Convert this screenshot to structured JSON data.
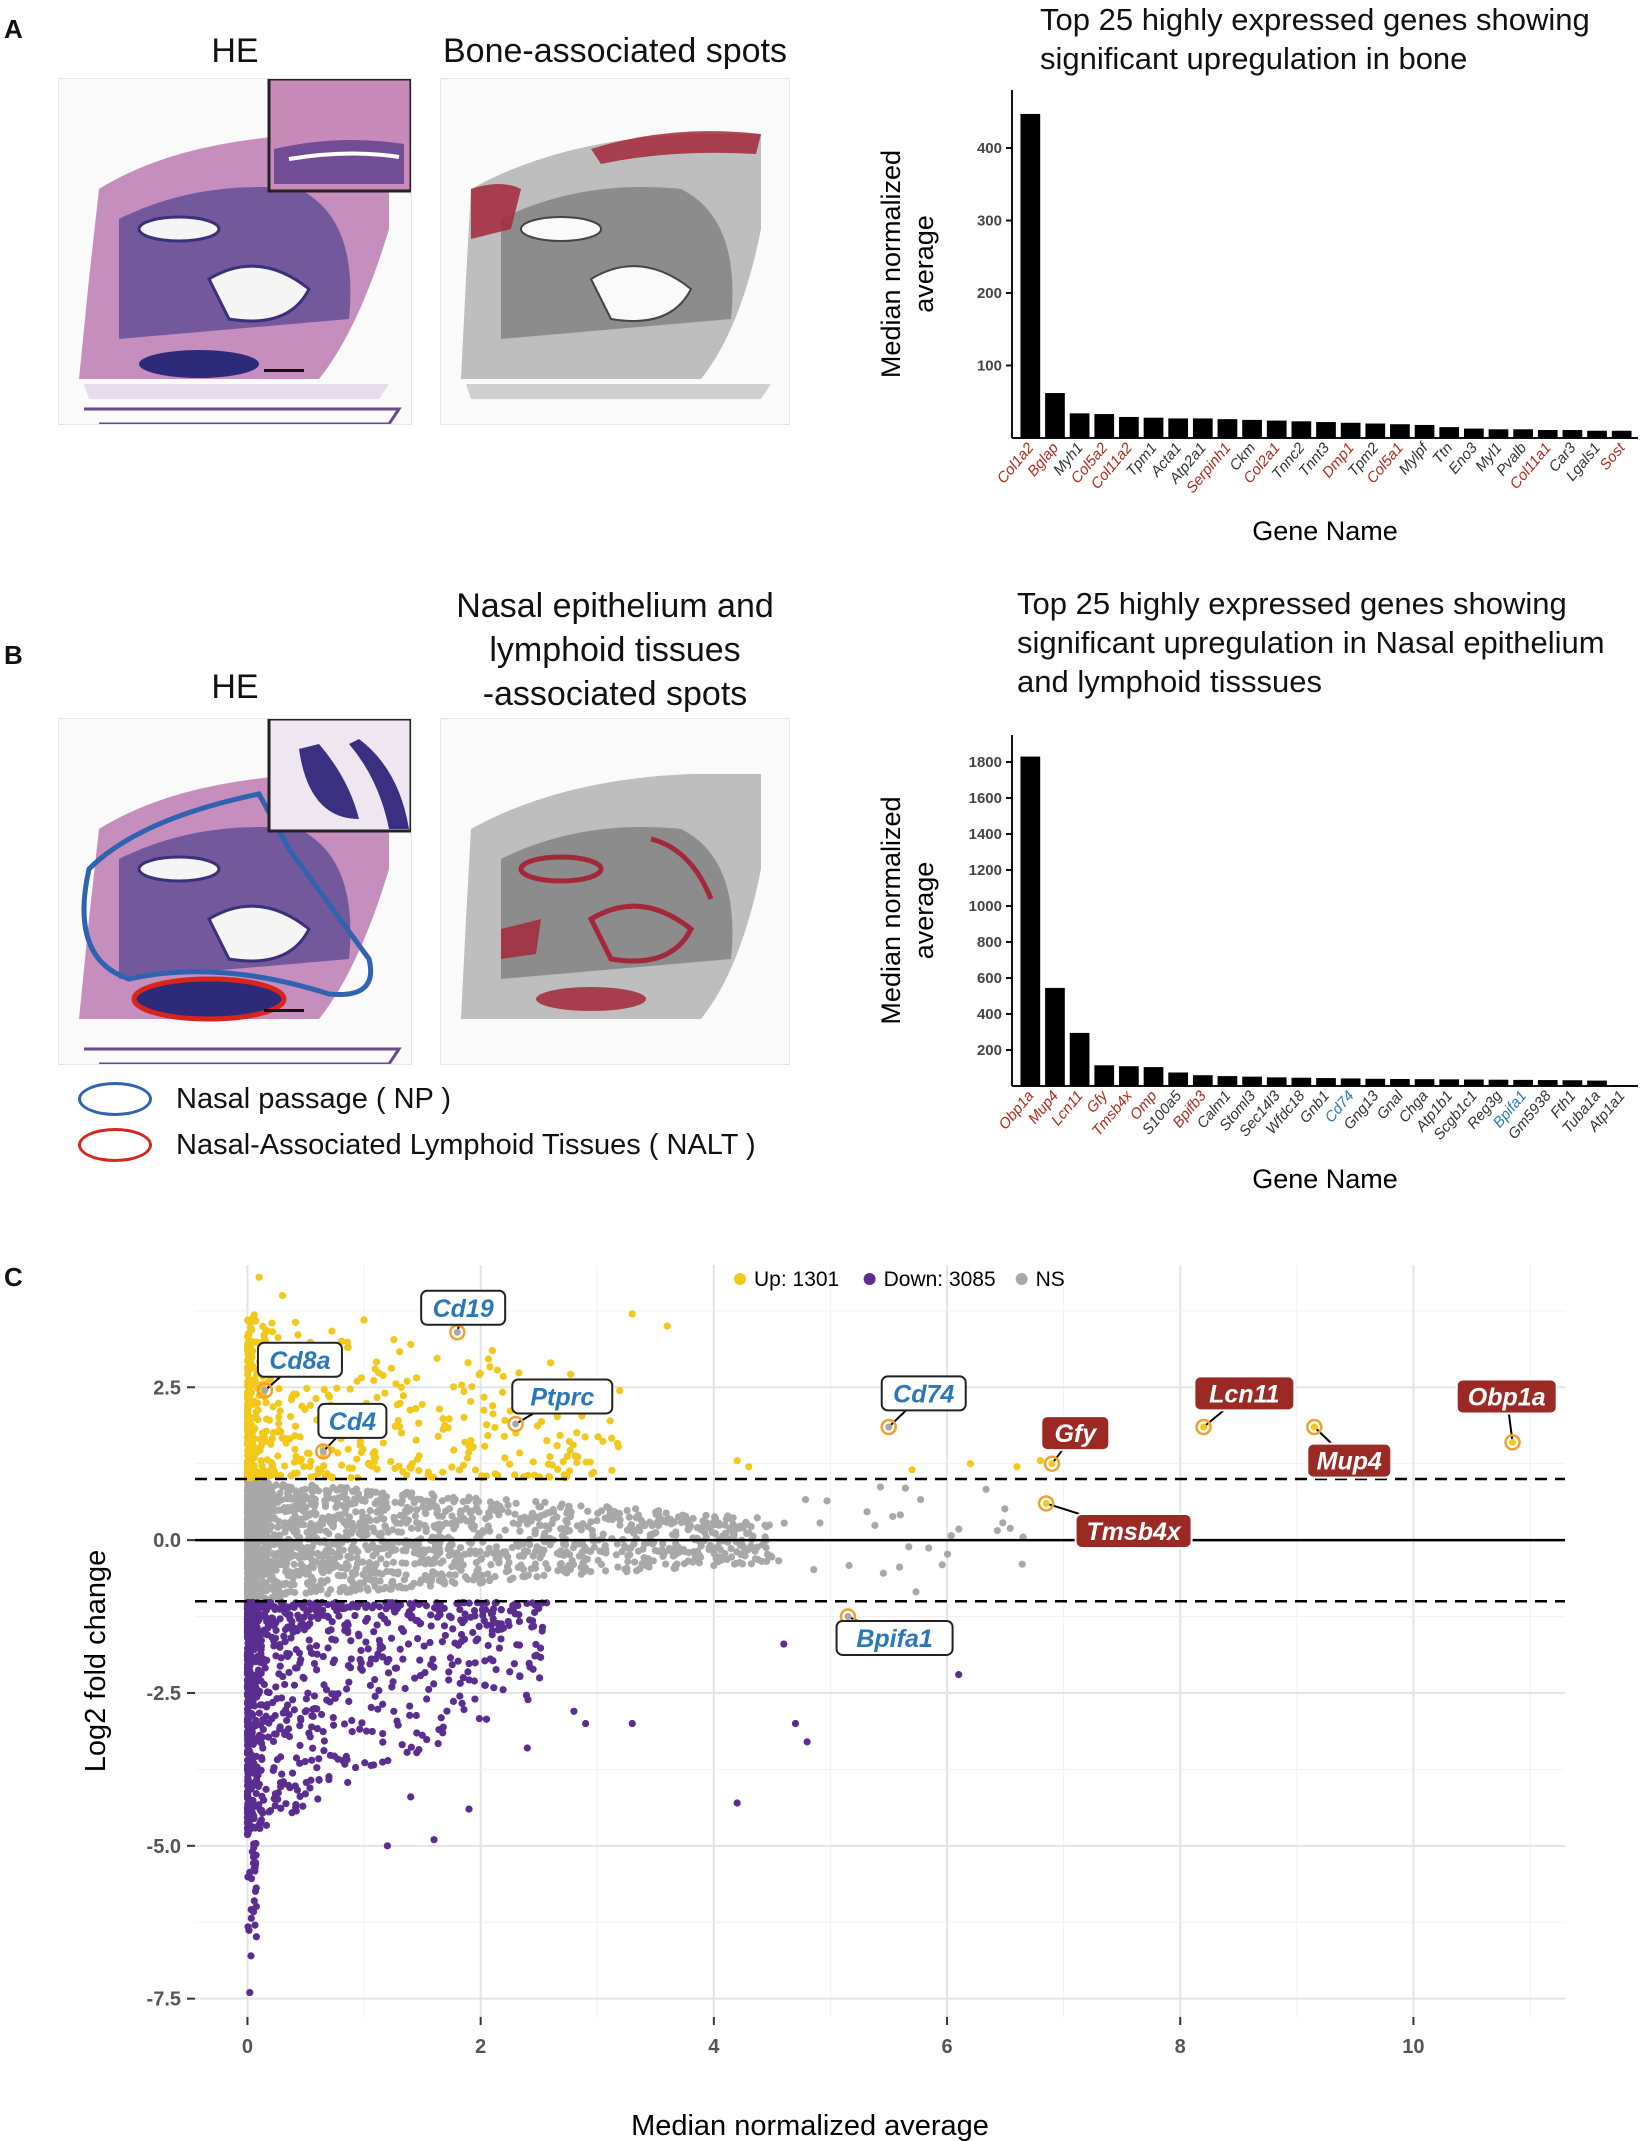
{
  "colors": {
    "red_gene": "#b22a1c",
    "blue_gene": "#2a78b8",
    "black_gene": "#333333",
    "up": "#f2c81a",
    "down": "#5b2d91",
    "ns": "#a8a8a8",
    "np_ellipse": "#2f63b1",
    "nalt_ellipse": "#d9241b",
    "label_red_bg": "#9c2a24",
    "label_blue": "#2a78b8"
  },
  "panelA": {
    "letter": "A",
    "he_title": "HE",
    "spots_title": "Bone-associated spots"
  },
  "panelB": {
    "letter": "B",
    "he_title": "HE",
    "spots_title_lines": [
      "Nasal epithelium and",
      "lymphoid tissues",
      "-associated spots"
    ],
    "legend": [
      {
        "label": "Nasal passage ( NP )",
        "icon": "blue-ellipse-icon"
      },
      {
        "label": "Nasal-Associated Lymphoid Tissues ( NALT )",
        "icon": "red-ellipse-icon"
      }
    ]
  },
  "panelC": {
    "letter": "C"
  },
  "chart_data": [
    {
      "type": "bar",
      "title_lines": [
        "Top 25 highly expressed genes showing",
        "significant upregulation in bone"
      ],
      "xlabel": "Gene Name",
      "ylabel_lines": [
        "Median normalized",
        "average"
      ],
      "ylim": [
        0,
        480
      ],
      "yticks": [
        100,
        200,
        300,
        400
      ],
      "categories": [
        "Col1a2",
        "Bglap",
        "Myh1",
        "Col5a2",
        "Col11a2",
        "Tpm1",
        "Acta1",
        "Atp2a1",
        "Serpinh1",
        "Ckm",
        "Col2a1",
        "Tnnc2",
        "Tnnt3",
        "Dmp1",
        "Tpm2",
        "Col5a1",
        "Mylpf",
        "Ttn",
        "Eno3",
        "Myl1",
        "Pvalb",
        "Col11a1",
        "Car3",
        "Lgals1",
        "Sost"
      ],
      "label_colors": [
        "red",
        "red",
        "black",
        "red",
        "red",
        "black",
        "black",
        "black",
        "red",
        "black",
        "red",
        "black",
        "black",
        "red",
        "black",
        "red",
        "black",
        "black",
        "black",
        "black",
        "black",
        "red",
        "black",
        "black",
        "red"
      ],
      "values": [
        447,
        62,
        34,
        33,
        29,
        28,
        27,
        27,
        26,
        25,
        24,
        23,
        22,
        21,
        20,
        19,
        18,
        15,
        13,
        12,
        12,
        11,
        11,
        10,
        10
      ]
    },
    {
      "type": "bar",
      "title_lines": [
        "Top 25 highly expressed genes showing",
        "significant upregulation in Nasal epithelium",
        "and lymphoid tisssues"
      ],
      "xlabel": "Gene Name",
      "ylabel_lines": [
        "Median normalized",
        "average"
      ],
      "ylim": [
        0,
        1950
      ],
      "yticks": [
        200,
        400,
        600,
        800,
        1000,
        1200,
        1400,
        1600,
        1800
      ],
      "categories": [
        "Obp1a",
        "Mup4",
        "Lcn11",
        "Gfy",
        "Tmsb4x",
        "Omp",
        "S100a5",
        "Bpifb3",
        "Calm1",
        "Stoml3",
        "Sec14l3",
        "Wfdc18",
        "Gnb1",
        "Cd74",
        "Gng13",
        "Gnal",
        "Chga",
        "Atp1b1",
        "Scgb1c1",
        "Reg3g",
        "Bpifa1",
        "Gm5938",
        "Fth1",
        "Tuba1a",
        "Atp1a1"
      ],
      "label_colors": [
        "red",
        "red",
        "red",
        "red",
        "red",
        "red",
        "black",
        "red",
        "black",
        "black",
        "black",
        "black",
        "black",
        "blue",
        "black",
        "black",
        "black",
        "black",
        "black",
        "black",
        "blue",
        "black",
        "black",
        "black",
        "black"
      ],
      "values": [
        1830,
        545,
        295,
        115,
        110,
        105,
        75,
        60,
        55,
        52,
        48,
        46,
        44,
        42,
        40,
        39,
        38,
        37,
        36,
        35,
        34,
        33,
        32,
        30,
        5
      ]
    },
    {
      "type": "scatter",
      "xlabel": "Median normalized average",
      "ylabel": "Log2 fold change",
      "xlim": [
        -0.45,
        11.3
      ],
      "ylim": [
        -7.8,
        4.5
      ],
      "xticks": [
        0,
        2,
        4,
        6,
        8,
        10
      ],
      "yticks": [
        -7.5,
        -5.0,
        -2.5,
        0.0,
        2.5
      ],
      "ytick_labels": [
        "-7.5",
        "-5.0",
        "-2.5",
        "0.0",
        "2.5"
      ],
      "thresholds": [
        1,
        -1
      ],
      "legend": [
        {
          "label": "Up: 1301",
          "color": "up"
        },
        {
          "label": "Down: 3085",
          "color": "down"
        },
        {
          "label": "NS",
          "color": "ns"
        }
      ],
      "series_counts": {
        "up": 1301,
        "down": 3085
      },
      "highlighted": [
        {
          "gene": "Cd19",
          "x": 1.8,
          "y": 3.4,
          "style": "blue",
          "lx": 1.85,
          "ly": 3.8
        },
        {
          "gene": "Cd8a",
          "x": 0.15,
          "y": 2.45,
          "style": "blue",
          "lx": 0.45,
          "ly": 2.95
        },
        {
          "gene": "Cd4",
          "x": 0.65,
          "y": 1.45,
          "style": "blue",
          "lx": 0.9,
          "ly": 1.95
        },
        {
          "gene": "Ptprc",
          "x": 2.3,
          "y": 1.9,
          "style": "blue",
          "lx": 2.7,
          "ly": 2.35
        },
        {
          "gene": "Cd74",
          "x": 5.5,
          "y": 1.85,
          "style": "blue",
          "lx": 5.8,
          "ly": 2.4
        },
        {
          "gene": "Gfy",
          "x": 6.9,
          "y": 1.25,
          "style": "red",
          "lx": 7.1,
          "ly": 1.75
        },
        {
          "gene": "Lcn11",
          "x": 8.2,
          "y": 1.85,
          "style": "red",
          "lx": 8.55,
          "ly": 2.4
        },
        {
          "gene": "Mup4",
          "x": 9.15,
          "y": 1.85,
          "style": "red",
          "lx": 9.45,
          "ly": 1.3
        },
        {
          "gene": "Obp1a",
          "x": 10.85,
          "y": 1.6,
          "style": "red",
          "lx": 10.8,
          "ly": 2.35
        },
        {
          "gene": "Tmsb4x",
          "x": 6.85,
          "y": 0.6,
          "style": "red",
          "lx": 7.6,
          "ly": 0.15
        },
        {
          "gene": "Bpifa1",
          "x": 5.15,
          "y": -1.25,
          "style": "blue",
          "lx": 5.55,
          "ly": -1.6
        }
      ]
    }
  ]
}
